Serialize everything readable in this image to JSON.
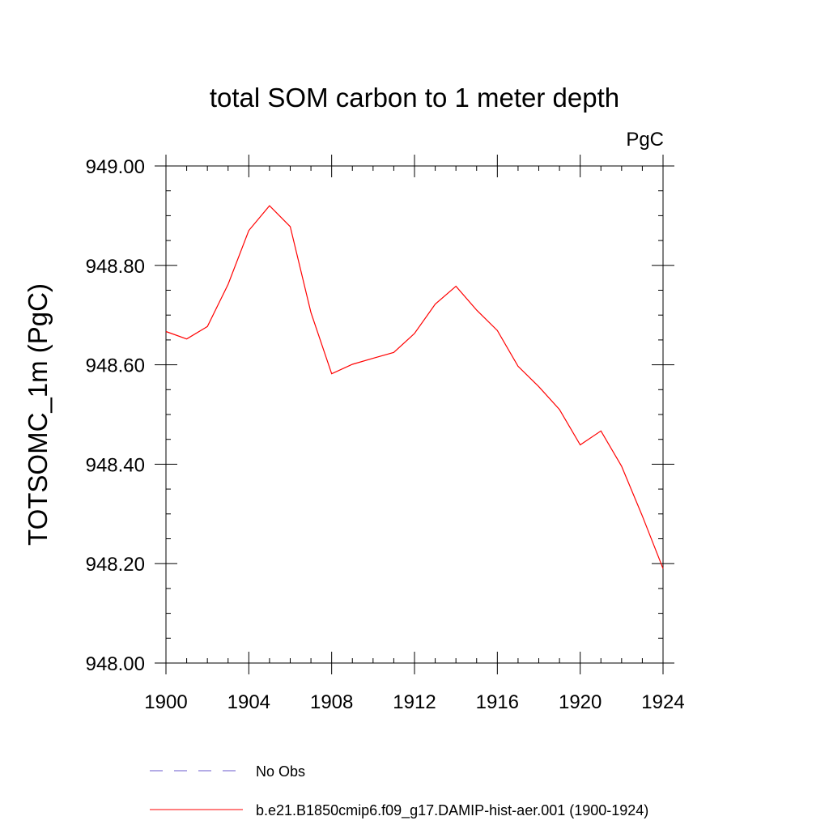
{
  "chart_data": {
    "type": "line",
    "title": "total SOM carbon to 1 meter depth",
    "units_label": "PgC",
    "ylabel": "TOTSOMC_1m  (PgC)",
    "xlabel": "",
    "xlim": [
      1900,
      1924
    ],
    "ylim": [
      948.0,
      949.0
    ],
    "x_ticks": [
      1900,
      1904,
      1908,
      1912,
      1916,
      1920,
      1924
    ],
    "x_tick_labels": [
      "1900",
      "1904",
      "1908",
      "1912",
      "1916",
      "1920",
      "1924"
    ],
    "y_ticks": [
      948.0,
      948.2,
      948.4,
      948.6,
      948.8,
      949.0
    ],
    "y_tick_labels": [
      "948.00",
      "948.20",
      "948.40",
      "948.60",
      "948.80",
      "949.00"
    ],
    "grid": false,
    "legend_position": "bottom",
    "series": [
      {
        "name": "No Obs",
        "color": "#6a5acd",
        "dash": "dashed",
        "x": [],
        "values": []
      },
      {
        "name": "b.e21.B1850cmip6.f09_g17.DAMIP-hist-aer.001 (1900-1924)",
        "color": "#ff0000",
        "dash": "solid",
        "x": [
          1900,
          1901,
          1902,
          1903,
          1904,
          1905,
          1906,
          1907,
          1908,
          1909,
          1910,
          1911,
          1912,
          1913,
          1914,
          1915,
          1916,
          1917,
          1918,
          1919,
          1920,
          1921,
          1922,
          1923,
          1924
        ],
        "values": [
          948.667,
          948.652,
          948.677,
          948.762,
          948.87,
          948.92,
          948.878,
          948.705,
          948.582,
          948.601,
          948.613,
          948.625,
          948.663,
          948.722,
          948.758,
          948.71,
          948.669,
          948.597,
          948.556,
          948.51,
          948.439,
          948.467,
          948.396,
          948.296,
          948.19
        ]
      }
    ]
  }
}
